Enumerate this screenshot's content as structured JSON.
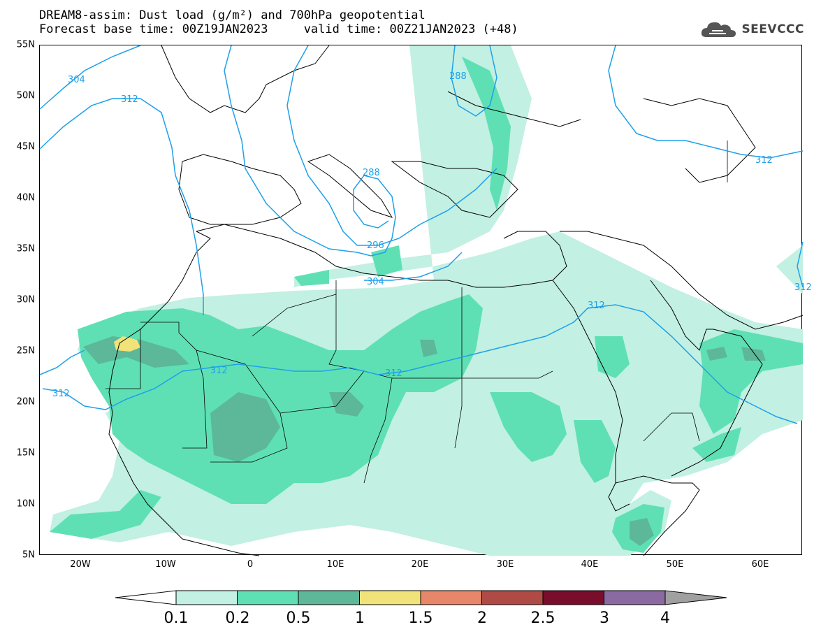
{
  "header": {
    "title_line1": "DREAM8-assim: Dust load (g/m²) and 700hPa geopotential",
    "title_line2": "Forecast base time: 00Z19JAN2023     valid time: 00Z21JAN2023 (+48)"
  },
  "logo": {
    "text": "SEEVCCC",
    "icon": "cloud-icon"
  },
  "map": {
    "lat_labels": [
      "55N",
      "50N",
      "45N",
      "40N",
      "35N",
      "30N",
      "25N",
      "20N",
      "15N",
      "10N",
      "5N"
    ],
    "lon_labels": [
      "20W",
      "10W",
      "0",
      "10E",
      "20E",
      "30E",
      "40E",
      "50E",
      "60E"
    ],
    "contour_labels": [
      "304",
      "312",
      "288",
      "288",
      "296",
      "304",
      "312",
      "312",
      "312",
      "312",
      "312",
      "312"
    ]
  },
  "colorbar": {
    "colors": [
      "#c2f0e3",
      "#5fe0b4",
      "#5cb898",
      "#f2e27a",
      "#e8866a",
      "#b04a44",
      "#7a0d2c",
      "#8a6aa0"
    ],
    "under_color": "#ffffff",
    "over_color": "#a0a0a0",
    "ticks": [
      "0.1",
      "0.2",
      "0.5",
      "1",
      "1.5",
      "2",
      "2.5",
      "3",
      "4"
    ]
  }
}
